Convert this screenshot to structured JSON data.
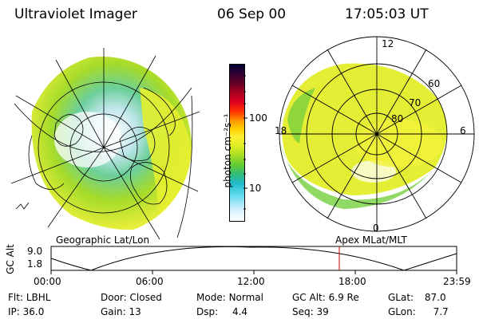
{
  "header": {
    "instrument": "Ultraviolet Imager",
    "date": "06 Sep 00",
    "time": "17:05:03 UT"
  },
  "colorbar": {
    "unit_label": "photon cm⁻²s⁻¹",
    "ticks": [
      "100",
      "10"
    ],
    "colors": [
      "#000033",
      "#330033",
      "#660022",
      "#990022",
      "#cc0022",
      "#ff3300",
      "#ff9900",
      "#ffcc00",
      "#ffee33",
      "#ddee22",
      "#99dd22",
      "#55cc33",
      "#22bb77",
      "#22bbcc",
      "#66ddee",
      "#cceeff",
      "#ffffff"
    ]
  },
  "left_map": {
    "caption": "Geographic Lat/Lon"
  },
  "right_map": {
    "caption": "Apex MLat/MLT",
    "mlt_labels": [
      "12",
      "18",
      "6",
      "0"
    ],
    "lat_labels": [
      "60",
      "70",
      "80"
    ]
  },
  "altitude_plot": {
    "ylabel": "GC Alt",
    "yticks": [
      "9.0",
      "1.8"
    ],
    "xticks": [
      "00:00",
      "06:00",
      "12:00",
      "18:00",
      "23:59"
    ],
    "current_time_marker": "17:05",
    "marker_color": "#cc0000"
  },
  "footer": {
    "row1": [
      {
        "label": "Flt:",
        "value": "LBHL"
      },
      {
        "label": "Door:",
        "value": "Closed"
      },
      {
        "label": "Mode:",
        "value": "Normal"
      },
      {
        "label": "GC Alt:",
        "value": "6.9 Re"
      },
      {
        "label": "GLat:",
        "value": "87.0"
      }
    ],
    "row2": [
      {
        "label": "IP:",
        "value": "36.0"
      },
      {
        "label": "Gain:",
        "value": "13"
      },
      {
        "label": "Dsp:",
        "value": "4.4"
      },
      {
        "label": "Seq:",
        "value": "39"
      },
      {
        "label": "GLon:",
        "value": "7.7"
      }
    ]
  }
}
